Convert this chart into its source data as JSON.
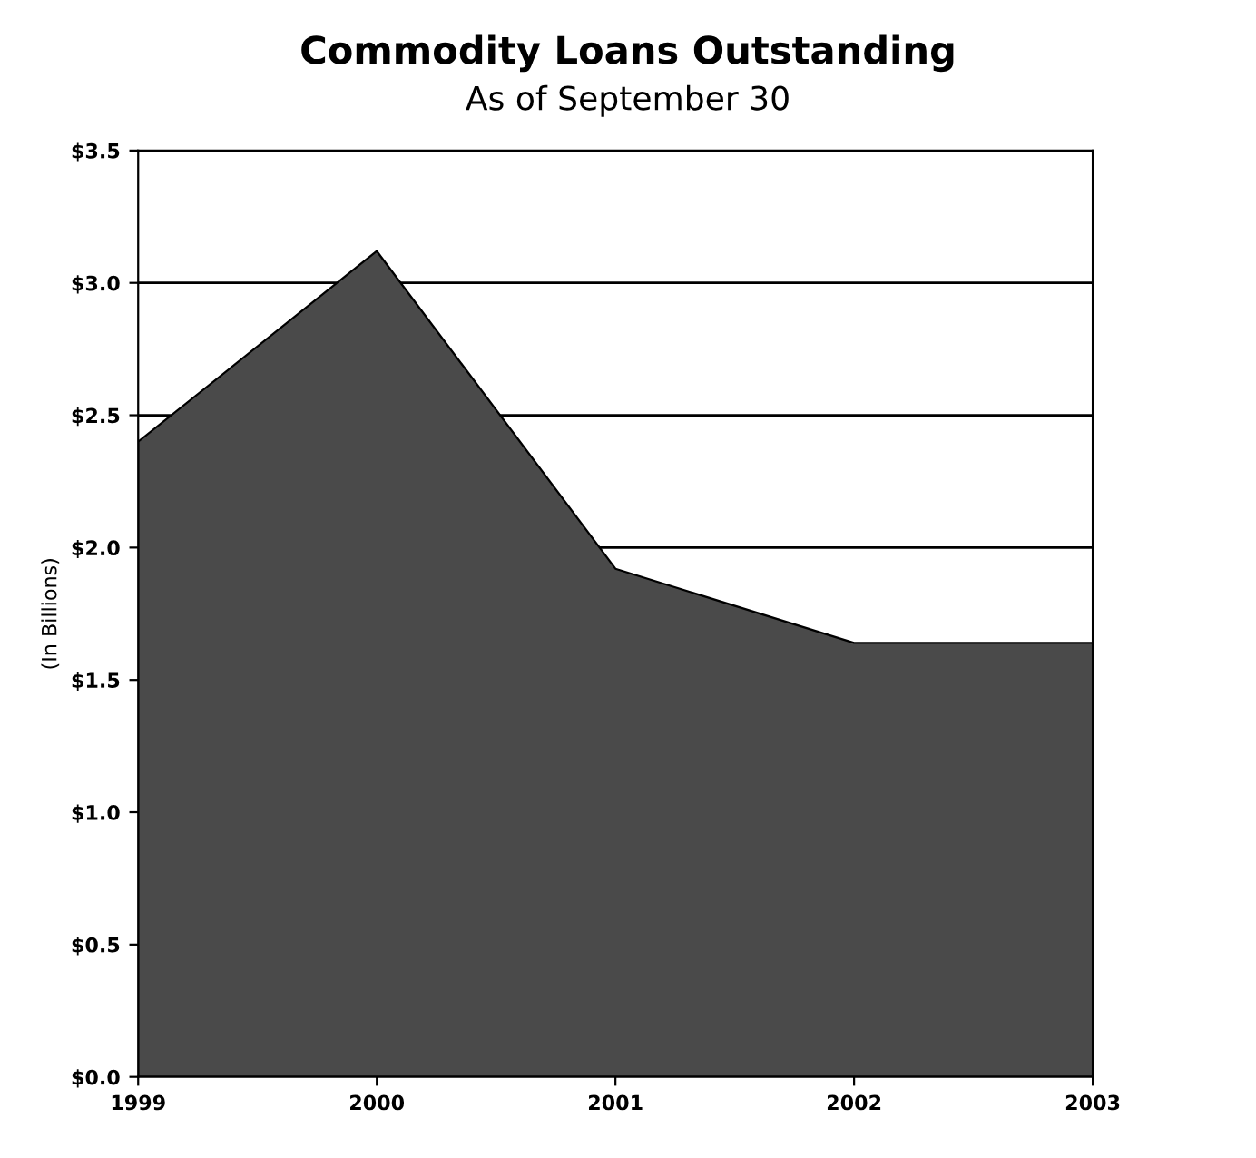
{
  "chart_data": {
    "type": "area",
    "title": "Commodity Loans Outstanding",
    "subtitle": "As of September 30",
    "ylabel": "(In Billions)",
    "categories": [
      "1999",
      "2000",
      "2001",
      "2002",
      "2003"
    ],
    "series": [
      {
        "color": "#4a4a4a",
        "values": [
          2.4,
          3.12,
          1.92,
          1.64,
          1.64
        ]
      }
    ],
    "ylim": [
      0,
      3.5
    ],
    "yticks": [
      {
        "value": 0,
        "label": "$0.0"
      },
      {
        "value": 0.5,
        "label": "$0.5"
      },
      {
        "value": 1,
        "label": "$1.0"
      },
      {
        "value": 1.5,
        "label": "$1.5"
      },
      {
        "value": 2,
        "label": "$2.0"
      },
      {
        "value": 2.5,
        "label": "$2.5"
      },
      {
        "value": 3,
        "label": "$3.0"
      },
      {
        "value": 3.5,
        "label": "$3.5"
      }
    ],
    "grid": "y"
  }
}
